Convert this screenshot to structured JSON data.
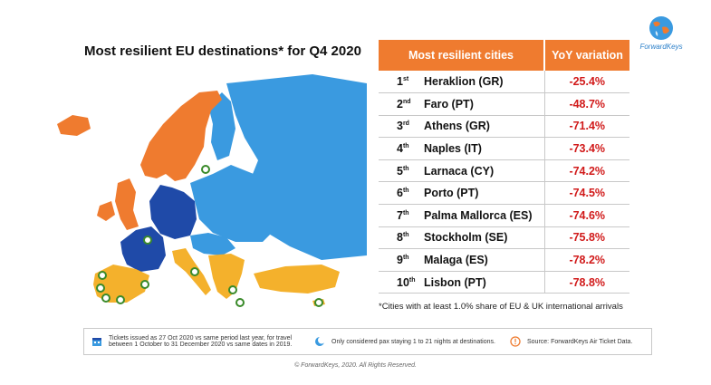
{
  "title": "Most resilient EU destinations* for Q4 2020",
  "logo": {
    "text": "ForwardKeys"
  },
  "table": {
    "headers": {
      "cities": "Most resilient cities",
      "yoy": "YoY variation"
    },
    "rows": [
      {
        "rank": "1",
        "suffix": "st",
        "city": "Heraklion (GR)",
        "yoy": "-25.4%"
      },
      {
        "rank": "2",
        "suffix": "nd",
        "city": "Faro (PT)",
        "yoy": "-48.7%"
      },
      {
        "rank": "3",
        "suffix": "rd",
        "city": "Athens (GR)",
        "yoy": "-71.4%"
      },
      {
        "rank": "4",
        "suffix": "th",
        "city": "Naples (IT)",
        "yoy": "-73.4%"
      },
      {
        "rank": "5",
        "suffix": "th",
        "city": "Larnaca (CY)",
        "yoy": "-74.2%"
      },
      {
        "rank": "6",
        "suffix": "th",
        "city": "Porto (PT)",
        "yoy": "-74.5%"
      },
      {
        "rank": "7",
        "suffix": "th",
        "city": "Palma Mallorca (ES)",
        "yoy": "-74.6%"
      },
      {
        "rank": "8",
        "suffix": "th",
        "city": "Stockholm (SE)",
        "yoy": "-75.8%"
      },
      {
        "rank": "9",
        "suffix": "th",
        "city": "Malaga (ES)",
        "yoy": "-78.2%"
      },
      {
        "rank": "10",
        "suffix": "th",
        "city": "Lisbon (PT)",
        "yoy": "-78.8%"
      }
    ]
  },
  "footnote": "*Cities with at least 1.0% share of EU & UK international arrivals",
  "info": {
    "tickets": "Tickets issued as 27 Oct 2020 vs same period last year, for travel between 1 October to 31 December 2020 vs same dates in 2019.",
    "nights": "Only considered pax staying 1 to 21 nights at destinations.",
    "source": "Source: ForwardKeys Air Ticket Data."
  },
  "copyright": "© ForwardKeys, 2020. All Rights Reserved.",
  "colors": {
    "orange": "#ef7b2f",
    "light_blue": "#3a9ae0",
    "dark_blue": "#1f4aa8",
    "yellow": "#f4b12c",
    "negative_red": "#d11a1a",
    "marker_green": "#3a8a2a"
  }
}
